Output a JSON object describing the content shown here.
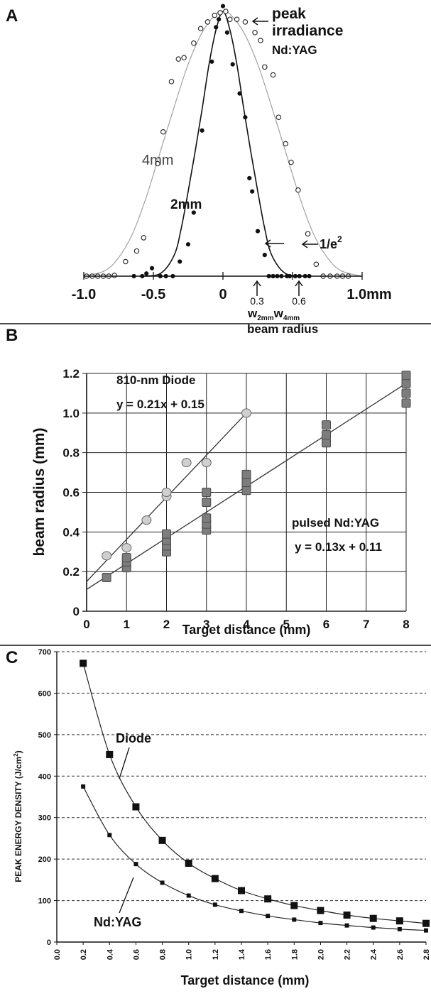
{
  "panels": [
    {
      "letter": "A"
    },
    {
      "letter": "B"
    },
    {
      "letter": "C"
    }
  ],
  "chart_data": [
    {
      "type": "scatter",
      "panel": "A",
      "xlim": [
        -1.0,
        1.0
      ],
      "ylim": [
        0,
        1
      ],
      "x_ticks": [
        {
          "value": -1.0,
          "label": "-1.0"
        },
        {
          "value": -0.5,
          "label": "-0.5"
        },
        {
          "value": 0,
          "label": "0"
        },
        {
          "value": 0.5,
          "label": ""
        },
        {
          "value": 1.0,
          "label": "1.0mm"
        }
      ],
      "annotations": {
        "peak_line1": "peak",
        "peak_line2": "irradiance",
        "peak_line3": "Nd:YAG",
        "label_4mm": "4mm",
        "label_2mm": "2mm",
        "label_e2": "1/e",
        "label_e2_sup": "2",
        "w_value_1": "0.3",
        "w_value_2": "0.6",
        "w_label_1": "w",
        "w_label_1_sub": "2mm",
        "w_label_2": "w",
        "w_label_2_sub": "4mm",
        "beam_radius": "beam radius"
      },
      "series": [
        {
          "name": "4mm",
          "marker": "open-circle",
          "points": [
            [
              -0.98,
              0
            ],
            [
              -0.94,
              0
            ],
            [
              -0.9,
              0
            ],
            [
              -0.86,
              0
            ],
            [
              -0.82,
              0
            ],
            [
              -0.78,
              0.003
            ],
            [
              -0.7,
              0.055
            ],
            [
              -0.62,
              0.095
            ],
            [
              -0.57,
              0.145
            ],
            [
              -0.47,
              0.425
            ],
            [
              -0.43,
              0.545
            ],
            [
              -0.37,
              0.735
            ],
            [
              -0.32,
              0.82
            ],
            [
              -0.28,
              0.825
            ],
            [
              -0.21,
              0.88
            ],
            [
              -0.16,
              0.935
            ],
            [
              -0.11,
              0.96
            ],
            [
              -0.06,
              0.985
            ],
            [
              -0.02,
              0.995
            ],
            [
              0.02,
              1.0
            ],
            [
              0.05,
              0.97
            ],
            [
              0.1,
              0.97
            ],
            [
              0.16,
              0.96
            ],
            [
              0.23,
              0.92
            ],
            [
              0.27,
              0.89
            ],
            [
              0.3,
              0.79
            ],
            [
              0.36,
              0.76
            ],
            [
              0.4,
              0.6
            ],
            [
              0.45,
              0.5
            ],
            [
              0.49,
              0.43
            ],
            [
              0.54,
              0.325
            ],
            [
              0.61,
              0.16
            ],
            [
              0.67,
              0.045
            ],
            [
              0.72,
              0
            ],
            [
              0.77,
              0
            ],
            [
              0.82,
              0
            ],
            [
              0.86,
              0
            ],
            [
              0.9,
              0
            ]
          ],
          "curve": [
            [
              -1.0,
              0
            ],
            [
              -0.85,
              0.02
            ],
            [
              -0.75,
              0.07
            ],
            [
              -0.65,
              0.16
            ],
            [
              -0.55,
              0.3
            ],
            [
              -0.45,
              0.47
            ],
            [
              -0.35,
              0.64
            ],
            [
              -0.25,
              0.8
            ],
            [
              -0.15,
              0.92
            ],
            [
              -0.05,
              0.99
            ],
            [
              0,
              1.0
            ],
            [
              0.05,
              0.99
            ],
            [
              0.15,
              0.92
            ],
            [
              0.25,
              0.8
            ],
            [
              0.35,
              0.64
            ],
            [
              0.45,
              0.47
            ],
            [
              0.55,
              0.3
            ],
            [
              0.65,
              0.16
            ],
            [
              0.75,
              0.07
            ],
            [
              0.85,
              0.02
            ],
            [
              1.0,
              0
            ]
          ]
        },
        {
          "name": "2mm",
          "marker": "filled-circle",
          "points": [
            [
              -0.64,
              0
            ],
            [
              -0.58,
              0
            ],
            [
              -0.55,
              0.01
            ],
            [
              -0.51,
              0.03
            ],
            [
              -0.45,
              0
            ],
            [
              -0.41,
              0
            ],
            [
              -0.36,
              0
            ],
            [
              -0.31,
              0.055
            ],
            [
              -0.25,
              0.12
            ],
            [
              -0.21,
              0.24
            ],
            [
              -0.15,
              0.55
            ],
            [
              -0.08,
              0.81
            ],
            [
              -0.05,
              0.94
            ],
            [
              -0.03,
              0.97
            ],
            [
              0,
              1.02
            ],
            [
              0.03,
              0.92
            ],
            [
              0.07,
              0.8
            ],
            [
              0.12,
              0.69
            ],
            [
              0.16,
              0.6
            ],
            [
              0.19,
              0.37
            ],
            [
              0.21,
              0.32
            ],
            [
              0.25,
              0.17
            ],
            [
              0.3,
              0.08
            ],
            [
              0.33,
              0
            ],
            [
              0.36,
              0
            ],
            [
              0.39,
              0
            ],
            [
              0.42,
              0
            ],
            [
              0.46,
              0
            ],
            [
              0.48,
              0
            ],
            [
              0.52,
              0
            ],
            [
              0.55,
              0
            ],
            [
              0.59,
              0
            ],
            [
              0.62,
              0
            ]
          ],
          "curve": [
            [
              -0.6,
              0
            ],
            [
              -0.45,
              0.01
            ],
            [
              -0.35,
              0.08
            ],
            [
              -0.3,
              0.18
            ],
            [
              -0.25,
              0.32
            ],
            [
              -0.2,
              0.47
            ],
            [
              -0.15,
              0.63
            ],
            [
              -0.1,
              0.8
            ],
            [
              -0.05,
              0.93
            ],
            [
              0,
              1.0
            ],
            [
              0.05,
              0.93
            ],
            [
              0.1,
              0.8
            ],
            [
              0.15,
              0.63
            ],
            [
              0.2,
              0.47
            ],
            [
              0.25,
              0.32
            ],
            [
              0.3,
              0.18
            ],
            [
              0.35,
              0.08
            ],
            [
              0.45,
              0.01
            ],
            [
              0.6,
              0
            ]
          ]
        }
      ]
    },
    {
      "type": "scatter",
      "panel": "B",
      "xlabel": "Target distance (mm)",
      "ylabel": "beam radius (mm)",
      "x_categories": [
        "0",
        "1",
        "2",
        "3",
        "4",
        "5",
        "6",
        "7",
        "8"
      ],
      "ylim": [
        0,
        1.2
      ],
      "y_ticks": [
        "0",
        "0.2",
        "0.4",
        "0.6",
        "0.8",
        "1.0",
        "1.2"
      ],
      "grid": true,
      "series": [
        {
          "name": "810-nm Diode",
          "equation": "y = 0.21x + 0.15",
          "marker": "circle",
          "fit_from_index": [
            0,
            0.15
          ],
          "fit_to_index": [
            4,
            1.0
          ],
          "points": [
            [
              0.5,
              0.28
            ],
            [
              1,
              0.32
            ],
            [
              1.5,
              0.46
            ],
            [
              2,
              0.58
            ],
            [
              2,
              0.6
            ],
            [
              2.5,
              0.75
            ],
            [
              3,
              0.75
            ],
            [
              4,
              1.0
            ]
          ]
        },
        {
          "name": "pulsed Nd:YAG",
          "equation": "y = 0.13x + 0.11",
          "marker": "square",
          "fit_from_index": [
            0,
            0.11
          ],
          "fit_to_index": [
            8,
            1.15
          ],
          "points": [
            [
              0.5,
              0.17
            ],
            [
              1,
              0.22
            ],
            [
              1,
              0.25
            ],
            [
              1,
              0.27
            ],
            [
              2,
              0.3
            ],
            [
              2,
              0.33
            ],
            [
              2,
              0.36
            ],
            [
              2,
              0.39
            ],
            [
              3,
              0.41
            ],
            [
              3,
              0.44
            ],
            [
              3,
              0.47
            ],
            [
              3,
              0.55
            ],
            [
              3,
              0.6
            ],
            [
              4,
              0.61
            ],
            [
              4,
              0.65
            ],
            [
              4,
              0.69
            ],
            [
              6,
              0.85
            ],
            [
              6,
              0.89
            ],
            [
              6,
              0.94
            ],
            [
              8,
              1.05
            ],
            [
              8,
              1.1
            ],
            [
              8,
              1.15
            ],
            [
              8,
              1.19
            ]
          ]
        }
      ]
    },
    {
      "type": "line",
      "panel": "C",
      "xlabel": "Target distance (mm)",
      "ylabel": "PEAK ENERGY DENSITY (J/cm",
      "ylabel_sup": "2",
      "ylabel_end": ")",
      "xlim": [
        0,
        2.8
      ],
      "x_ticks": [
        "0.0",
        "0.2",
        "0.4",
        "0.6",
        "0.8",
        "1.0",
        "1.2",
        "1.4",
        "1.6",
        "1.8",
        "2.0",
        "2.2",
        "2.4",
        "2.6",
        "2.8"
      ],
      "ylim": [
        0,
        700
      ],
      "y_ticks": [
        "0",
        "100",
        "200",
        "300",
        "400",
        "500",
        "600",
        "700"
      ],
      "grid": "dashed-horizontal",
      "series": [
        {
          "name": "Diode",
          "marker": "square",
          "points": [
            [
              0.2,
              672
            ],
            [
              0.4,
              452
            ],
            [
              0.6,
              326
            ],
            [
              0.8,
              245
            ],
            [
              1.0,
              190
            ],
            [
              1.2,
              153
            ],
            [
              1.4,
              124
            ],
            [
              1.6,
              104
            ],
            [
              1.8,
              88
            ],
            [
              2.0,
              76
            ],
            [
              2.2,
              65
            ],
            [
              2.4,
              57
            ],
            [
              2.6,
              51
            ],
            [
              2.8,
              45
            ]
          ]
        },
        {
          "name": "Nd:YAG",
          "marker": "small-square",
          "points": [
            [
              0.2,
              375
            ],
            [
              0.4,
              258
            ],
            [
              0.6,
              188
            ],
            [
              0.8,
              143
            ],
            [
              1.0,
              112
            ],
            [
              1.2,
              90
            ],
            [
              1.4,
              75
            ],
            [
              1.6,
              63
            ],
            [
              1.8,
              54
            ],
            [
              2.0,
              46
            ],
            [
              2.2,
              40
            ],
            [
              2.4,
              35
            ],
            [
              2.6,
              31
            ],
            [
              2.8,
              28
            ]
          ]
        }
      ]
    }
  ]
}
